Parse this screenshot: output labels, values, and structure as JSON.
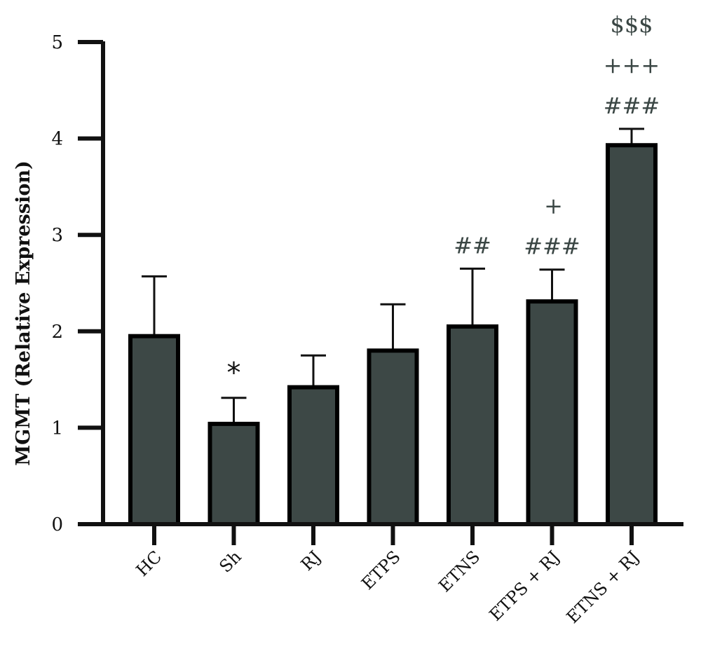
{
  "chart_data": {
    "type": "bar",
    "title": "",
    "xlabel": "",
    "ylabel": "MGMT (Relative Expression)",
    "ylim": [
      0,
      5
    ],
    "yticks": [
      "0",
      "1",
      "2",
      "3",
      "4",
      "5"
    ],
    "grid": false,
    "legend": "none",
    "categories": [
      "HC",
      "Sh",
      "RJ",
      "ETPS",
      "ETNS",
      "ETPS + RJ",
      "ETNS + RJ"
    ],
    "values": [
      1.95,
      1.04,
      1.42,
      1.8,
      2.05,
      2.31,
      3.93
    ],
    "error_upper": [
      2.57,
      1.31,
      1.75,
      2.28,
      2.65,
      2.64,
      4.1
    ],
    "annotations": [
      [],
      [
        "*"
      ],
      [],
      [],
      [
        "##"
      ],
      [
        "###",
        "+"
      ],
      [
        "###",
        "+++",
        "$$$"
      ]
    ],
    "colors": {
      "bar_fill": "#3d4846",
      "bar_edge": "#000000",
      "annotation": "#3a4644"
    }
  }
}
